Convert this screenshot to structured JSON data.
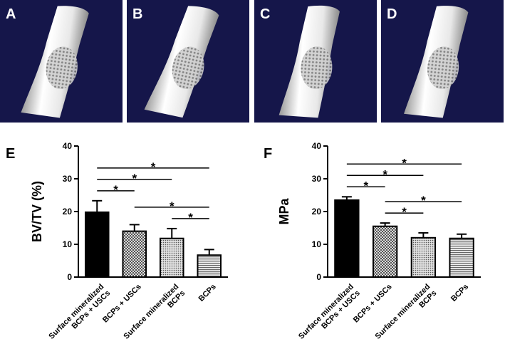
{
  "images": [
    {
      "label": "A"
    },
    {
      "label": "B"
    },
    {
      "label": "C"
    },
    {
      "label": "D"
    }
  ],
  "chart_data": [
    {
      "type": "bar",
      "title": "E",
      "ylabel": "BV/TV (%)",
      "categories": [
        "Surface mineralized\nBCPs + USCs",
        "BCPs + USCs",
        "Surface mineralized\nBCPs",
        "BCPs"
      ],
      "values": [
        19.8,
        14,
        11.8,
        6.7
      ],
      "errors": [
        3.5,
        2,
        3,
        1.7
      ],
      "colors": [
        "#000000",
        "#8c8c8c",
        "#b4b4b4",
        "#cfcfcf"
      ],
      "patterns": [
        "solid",
        "checker",
        "dots",
        "stripes"
      ],
      "ylim": [
        0,
        40
      ],
      "yticks": [
        0,
        10,
        20,
        30,
        40
      ],
      "comparisons": [
        {
          "from": 2,
          "to": 3,
          "label": "*"
        },
        {
          "from": 1,
          "to": 3,
          "label": "*"
        },
        {
          "from": 0,
          "to": 1,
          "label": "*"
        },
        {
          "from": 0,
          "to": 2,
          "label": "*"
        },
        {
          "from": 0,
          "to": 3,
          "label": "*"
        }
      ]
    },
    {
      "type": "bar",
      "title": "F",
      "ylabel": "MPa",
      "categories": [
        "Surface mineralized\nBCPs + USCs",
        "BCPs + USCs",
        "Surface mineralized\nBCPs",
        "BCPs"
      ],
      "values": [
        23.5,
        15.5,
        12,
        11.8
      ],
      "errors": [
        1,
        1,
        1.5,
        1.3
      ],
      "colors": [
        "#000000",
        "#8c8c8c",
        "#b4b4b4",
        "#cfcfcf"
      ],
      "patterns": [
        "solid",
        "checker",
        "dots",
        "stripes"
      ],
      "ylim": [
        0,
        40
      ],
      "yticks": [
        0,
        10,
        20,
        30,
        40
      ],
      "comparisons": [
        {
          "from": 1,
          "to": 2,
          "label": "*"
        },
        {
          "from": 1,
          "to": 3,
          "label": "*"
        },
        {
          "from": 0,
          "to": 1,
          "label": "*"
        },
        {
          "from": 0,
          "to": 2,
          "label": "*"
        },
        {
          "from": 0,
          "to": 3,
          "label": "*"
        }
      ]
    }
  ]
}
